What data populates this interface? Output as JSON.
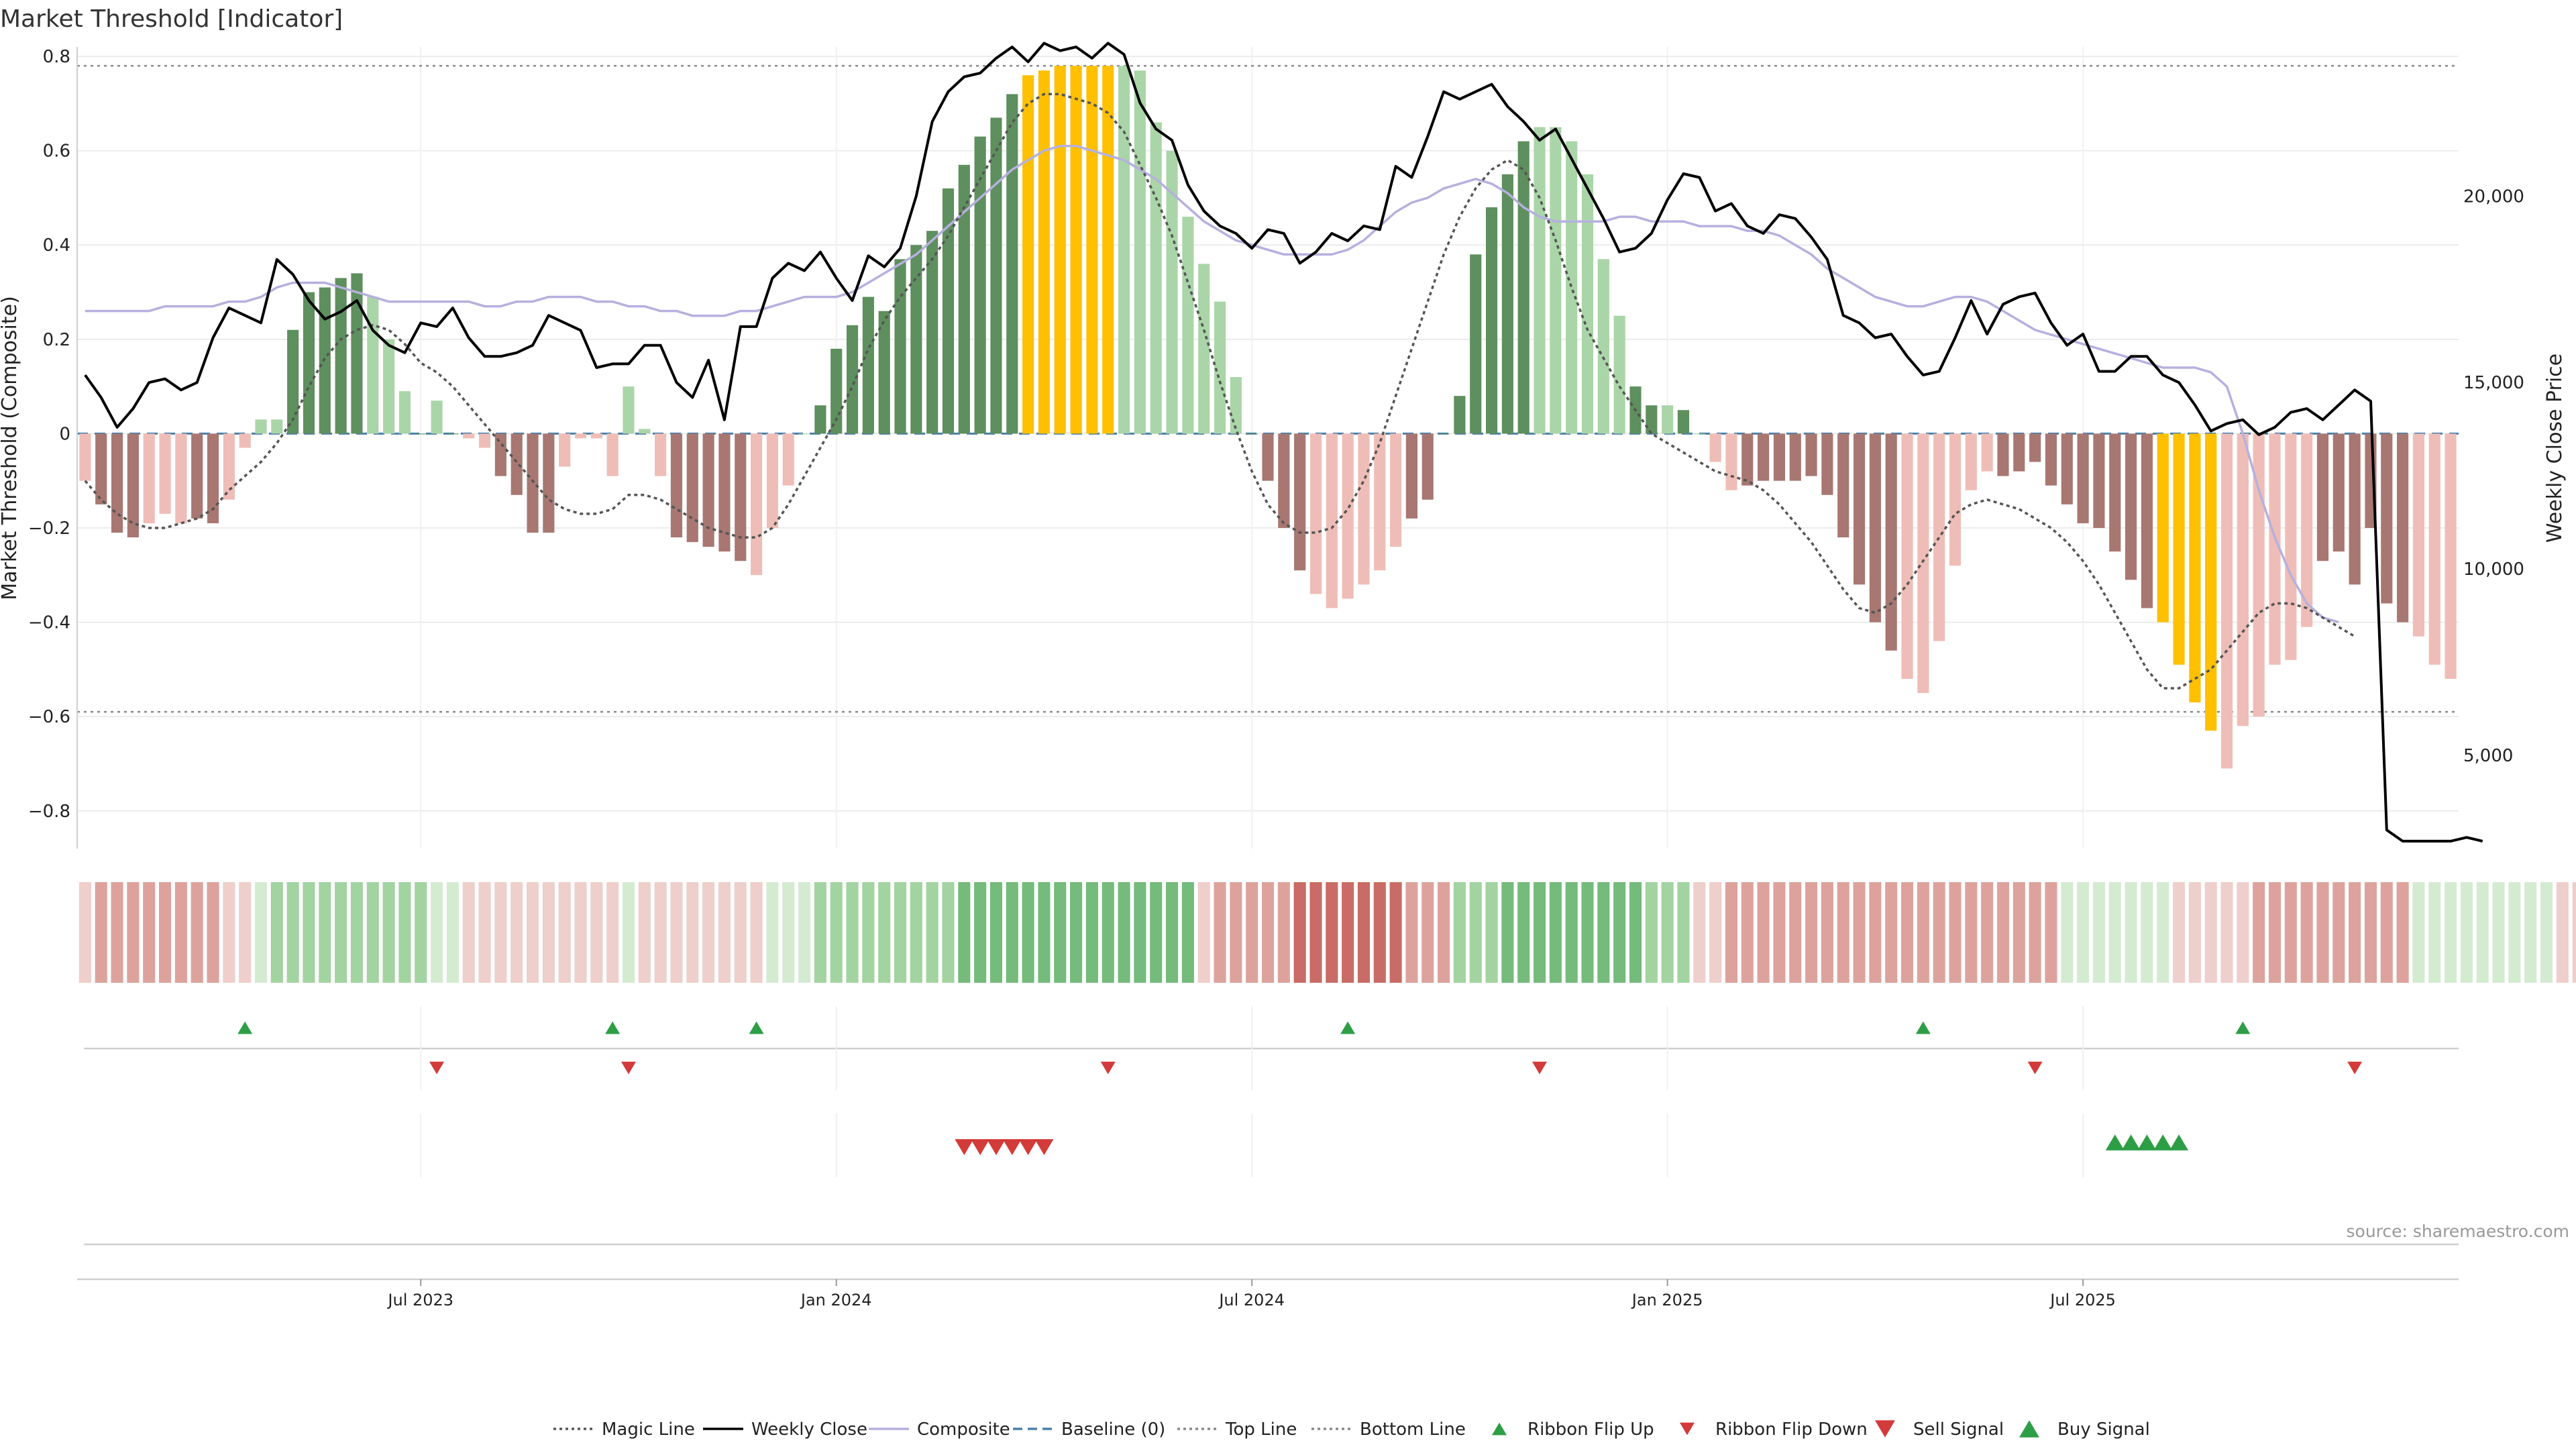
{
  "title": "Market Threshold [Indicator]",
  "source_note": "source: sharemaestro.com",
  "colors": {
    "dark_green": "#5e8f5e",
    "light_green": "#aad5a8",
    "dark_red": "#a87772",
    "light_red": "#efbdb7",
    "gold": "#ffc000",
    "weekly_close": "#000000",
    "composite": "#b6b0de",
    "magic": "#555555",
    "baseline": "#4a7fa8",
    "sell": "#d33a3a",
    "buy": "#2e9e46"
  },
  "legend": [
    {
      "label": "Magic Line",
      "symbol": "dotted-line",
      "color": "#555555"
    },
    {
      "label": "Weekly Close",
      "symbol": "solid-line",
      "color": "#000000"
    },
    {
      "label": "Composite",
      "symbol": "solid-line",
      "color": "#b6b0de"
    },
    {
      "label": "Baseline (0)",
      "symbol": "dashed-line",
      "color": "#4a7fa8"
    },
    {
      "label": "Top Line",
      "symbol": "dotted-line",
      "color": "#888888"
    },
    {
      "label": "Bottom Line",
      "symbol": "dotted-line",
      "color": "#888888"
    },
    {
      "label": "Ribbon Flip Up",
      "symbol": "triangle-up-small",
      "color": "#2e9e46"
    },
    {
      "label": "Ribbon Flip Down",
      "symbol": "triangle-down-small",
      "color": "#d33a3a"
    },
    {
      "label": "Sell Signal",
      "symbol": "triangle-down",
      "color": "#d33a3a"
    },
    {
      "label": "Buy Signal",
      "symbol": "triangle-up",
      "color": "#2e9e46"
    }
  ],
  "chart_data": {
    "type": "bar",
    "title": "Market Threshold [Indicator]",
    "ylabel": "Market Threshold (Composite)",
    "ylabel_right": "Weekly Close Price",
    "ylim": [
      -0.88,
      0.82
    ],
    "ylim_right": [
      2500,
      24000
    ],
    "yticks": [
      -0.8,
      -0.6,
      -0.4,
      -0.2,
      0,
      0.2,
      0.4,
      0.6,
      0.8
    ],
    "yticks_labels": [
      "−0.8",
      "−0.6",
      "−0.4",
      "−0.2",
      "0",
      "0.2",
      "0.4",
      "0.6",
      "0.8"
    ],
    "yticks_right": [
      5000,
      10000,
      15000,
      20000
    ],
    "yticks_right_labels": [
      "5,000",
      "10,000",
      "15,000",
      "20,000"
    ],
    "xticks": [
      {
        "label": "Jul 2023",
        "week": 21
      },
      {
        "label": "Jan 2024",
        "week": 47
      },
      {
        "label": "Jul 2024",
        "week": 73
      },
      {
        "label": "Jan 2025",
        "week": 99
      },
      {
        "label": "Jul 2025",
        "week": 125
      }
    ],
    "grid": true,
    "legend_position": "bottom",
    "top_line": 0.78,
    "bottom_line": -0.59,
    "baseline": 0,
    "composite_values": [
      -0.1,
      -0.15,
      -0.21,
      -0.22,
      -0.19,
      -0.17,
      -0.19,
      -0.18,
      -0.19,
      -0.14,
      -0.03,
      0.03,
      0.03,
      0.22,
      0.3,
      0.31,
      0.33,
      0.34,
      0.29,
      0.2,
      0.09,
      0.0,
      0.07,
      0.0,
      -0.01,
      -0.03,
      -0.09,
      -0.13,
      -0.21,
      -0.21,
      -0.07,
      -0.01,
      -0.01,
      -0.09,
      0.1,
      0.01,
      -0.09,
      -0.22,
      -0.23,
      -0.24,
      -0.25,
      -0.27,
      -0.3,
      -0.2,
      -0.11,
      0.0,
      0.06,
      0.18,
      0.23,
      0.29,
      0.26,
      0.37,
      0.4,
      0.43,
      0.52,
      0.57,
      0.63,
      0.67,
      0.72,
      0.76,
      0.77,
      0.78,
      0.78,
      0.78,
      0.78,
      0.78,
      0.77,
      0.66,
      0.6,
      0.46,
      0.36,
      0.28,
      0.12,
      0.0,
      -0.1,
      -0.2,
      -0.29,
      -0.34,
      -0.37,
      -0.35,
      -0.32,
      -0.29,
      -0.24,
      -0.18,
      -0.14,
      0.0,
      0.08,
      0.38,
      0.48,
      0.55,
      0.62,
      0.65,
      0.65,
      0.62,
      0.55,
      0.37,
      0.25,
      0.1,
      0.06,
      0.06,
      0.05,
      0.0,
      -0.06,
      -0.12,
      -0.11,
      -0.1,
      -0.1,
      -0.1,
      -0.09,
      -0.13,
      -0.22,
      -0.32,
      -0.4,
      -0.46,
      -0.52,
      -0.55,
      -0.44,
      -0.28,
      -0.12,
      -0.08,
      -0.09,
      -0.08,
      -0.06,
      -0.11,
      -0.15,
      -0.19,
      -0.2,
      -0.25,
      -0.31,
      -0.37,
      -0.4,
      -0.49,
      -0.57,
      -0.63,
      -0.71,
      -0.62,
      -0.6,
      -0.49,
      -0.48,
      -0.41,
      -0.27,
      -0.25,
      -0.32,
      -0.2,
      -0.36,
      -0.4,
      -0.43,
      -0.49,
      -0.52
    ],
    "bar_color_codes": "LDDDLLLDDLLLLDDDDDLLLDLDLLDDDDLLLLLLLDDDDDLLLLDDDDDDDDDDDDDGGGGGGLLLLLLLLDDDDLLLLLLDDDDDDDDLLLLLLDDLDLLLDDDDDDDDDDLLLLLLDDDDDDDDDDGGGGLLLLLLDDDDDD",
    "weekly_close_values": [
      15200,
      14600,
      13800,
      14300,
      15000,
      15100,
      14800,
      15000,
      16200,
      17000,
      16800,
      16600,
      18300,
      17900,
      17200,
      16700,
      16900,
      17200,
      16400,
      16000,
      15800,
      16600,
      16500,
      17000,
      16200,
      15700,
      15700,
      15800,
      16000,
      16800,
      16600,
      16400,
      15400,
      15500,
      15500,
      16000,
      16000,
      15000,
      14600,
      15600,
      14000,
      16500,
      16500,
      17800,
      18200,
      18000,
      18500,
      17800,
      17200,
      18400,
      18100,
      18600,
      20000,
      22000,
      22800,
      23200,
      23300,
      23700,
      24000,
      23600,
      24100,
      23900,
      24000,
      23700,
      24100,
      23800,
      22500,
      21800,
      21500,
      20300,
      19600,
      19200,
      19000,
      18600,
      19100,
      19000,
      18200,
      18500,
      19000,
      18800,
      19200,
      19100,
      20800,
      20500,
      21600,
      22800,
      22600,
      22800,
      23000,
      22400,
      22000,
      21500,
      21800,
      21000,
      20200,
      19400,
      18500,
      18600,
      19000,
      19900,
      20600,
      20500,
      19600,
      19800,
      19200,
      19000,
      19500,
      19400,
      18900,
      18300,
      16800,
      16600,
      16200,
      16300,
      15700,
      15200,
      15300,
      16200,
      17200,
      16300,
      17100,
      17300,
      17400,
      16600,
      16000,
      16300,
      15300,
      15300,
      15700,
      15700,
      15200,
      15000,
      14400,
      13700,
      13900,
      14000,
      13600,
      13800,
      14200,
      14300,
      14000,
      14400,
      14800,
      14500,
      3000,
      2700,
      2700,
      2700,
      2700,
      2800,
      2700
    ],
    "composite_line_values": [
      0.26,
      0.26,
      0.26,
      0.26,
      0.26,
      0.27,
      0.27,
      0.27,
      0.27,
      0.28,
      0.28,
      0.29,
      0.31,
      0.32,
      0.32,
      0.32,
      0.31,
      0.3,
      0.29,
      0.28,
      0.28,
      0.28,
      0.28,
      0.28,
      0.28,
      0.27,
      0.27,
      0.28,
      0.28,
      0.29,
      0.29,
      0.29,
      0.28,
      0.28,
      0.27,
      0.27,
      0.26,
      0.26,
      0.25,
      0.25,
      0.25,
      0.26,
      0.26,
      0.27,
      0.28,
      0.29,
      0.29,
      0.29,
      0.3,
      0.32,
      0.34,
      0.36,
      0.38,
      0.41,
      0.44,
      0.47,
      0.5,
      0.53,
      0.56,
      0.58,
      0.6,
      0.61,
      0.61,
      0.6,
      0.59,
      0.58,
      0.56,
      0.54,
      0.51,
      0.48,
      0.45,
      0.43,
      0.41,
      0.4,
      0.39,
      0.38,
      0.38,
      0.38,
      0.38,
      0.39,
      0.41,
      0.44,
      0.47,
      0.49,
      0.5,
      0.52,
      0.53,
      0.54,
      0.53,
      0.51,
      0.48,
      0.46,
      0.45,
      0.45,
      0.45,
      0.45,
      0.46,
      0.46,
      0.45,
      0.45,
      0.45,
      0.44,
      0.44,
      0.44,
      0.43,
      0.43,
      0.42,
      0.4,
      0.38,
      0.35,
      0.33,
      0.31,
      0.29,
      0.28,
      0.27,
      0.27,
      0.28,
      0.29,
      0.29,
      0.28,
      0.26,
      0.24,
      0.22,
      0.21,
      0.2,
      0.19,
      0.18,
      0.17,
      0.16,
      0.15,
      0.14,
      0.14,
      0.14,
      0.13,
      0.1,
      0.0,
      -0.12,
      -0.22,
      -0.3,
      -0.36,
      -0.39,
      -0.4
    ],
    "magic_line_values": [
      -0.1,
      -0.14,
      -0.17,
      -0.19,
      -0.2,
      -0.2,
      -0.19,
      -0.18,
      -0.16,
      -0.12,
      -0.09,
      -0.06,
      -0.02,
      0.03,
      0.1,
      0.16,
      0.2,
      0.22,
      0.23,
      0.22,
      0.19,
      0.15,
      0.13,
      0.1,
      0.06,
      0.02,
      -0.02,
      -0.06,
      -0.1,
      -0.14,
      -0.16,
      -0.17,
      -0.17,
      -0.16,
      -0.13,
      -0.13,
      -0.14,
      -0.16,
      -0.18,
      -0.2,
      -0.21,
      -0.22,
      -0.22,
      -0.2,
      -0.15,
      -0.09,
      -0.03,
      0.03,
      0.1,
      0.18,
      0.24,
      0.29,
      0.33,
      0.37,
      0.42,
      0.48,
      0.54,
      0.6,
      0.66,
      0.7,
      0.72,
      0.72,
      0.71,
      0.7,
      0.68,
      0.64,
      0.57,
      0.5,
      0.42,
      0.32,
      0.22,
      0.11,
      0.01,
      -0.08,
      -0.15,
      -0.19,
      -0.21,
      -0.21,
      -0.2,
      -0.16,
      -0.1,
      -0.02,
      0.08,
      0.18,
      0.28,
      0.38,
      0.46,
      0.52,
      0.56,
      0.58,
      0.56,
      0.5,
      0.41,
      0.31,
      0.22,
      0.16,
      0.1,
      0.05,
      0.0,
      -0.02,
      -0.04,
      -0.06,
      -0.08,
      -0.09,
      -0.1,
      -0.12,
      -0.15,
      -0.19,
      -0.23,
      -0.28,
      -0.33,
      -0.37,
      -0.38,
      -0.36,
      -0.32,
      -0.27,
      -0.22,
      -0.17,
      -0.15,
      -0.14,
      -0.15,
      -0.16,
      -0.18,
      -0.2,
      -0.23,
      -0.27,
      -0.32,
      -0.38,
      -0.44,
      -0.5,
      -0.54,
      -0.54,
      -0.52,
      -0.5,
      -0.46,
      -0.42,
      -0.38,
      -0.36,
      -0.36,
      -0.37,
      -0.39,
      -0.41,
      -0.43
    ],
    "ribbon_levels": [
      -1,
      -2,
      -2,
      -2,
      -2,
      -2,
      -2,
      -2,
      -2,
      -1,
      -1,
      1,
      2,
      2,
      2,
      2,
      2,
      2,
      2,
      2,
      2,
      2,
      1,
      1,
      -1,
      -1,
      -1,
      -1,
      -1,
      -1,
      -1,
      -1,
      -1,
      -1,
      1,
      -1,
      -1,
      -1,
      -1,
      -1,
      -1,
      -1,
      -1,
      1,
      1,
      1,
      2,
      2,
      2,
      2,
      2,
      2,
      2,
      2,
      2,
      3,
      3,
      3,
      3,
      3,
      3,
      3,
      3,
      3,
      3,
      3,
      3,
      3,
      3,
      3,
      -1,
      -2,
      -2,
      -2,
      -2,
      -2,
      -3,
      -3,
      -3,
      -3,
      -3,
      -3,
      -3,
      -2,
      -2,
      -2,
      2,
      2,
      2,
      3,
      3,
      3,
      3,
      3,
      3,
      3,
      3,
      3,
      2,
      2,
      2,
      -1,
      -1,
      -2,
      -2,
      -2,
      -2,
      -2,
      -2,
      -2,
      -2,
      -2,
      -2,
      -2,
      -2,
      -2,
      -2,
      -2,
      -2,
      -2,
      -2,
      -2,
      -2,
      -2,
      1,
      1,
      1,
      1,
      1,
      1,
      1,
      -1,
      -1,
      -1,
      -1,
      -1,
      -2,
      -2,
      -2,
      -2,
      -2,
      -2,
      -2,
      -2,
      -2,
      -2,
      1,
      1,
      1,
      1,
      1,
      1,
      1,
      1,
      1,
      -1,
      -1
    ],
    "ribbon_flip_up_weeks": [
      10,
      33,
      42,
      79,
      115,
      135
    ],
    "ribbon_flip_down_weeks": [
      22,
      34,
      64,
      91,
      122,
      142
    ],
    "sell_signal_weeks": [
      55,
      56,
      57,
      58,
      59,
      60
    ],
    "buy_signal_weeks": [
      127,
      128,
      129,
      130,
      131
    ]
  }
}
